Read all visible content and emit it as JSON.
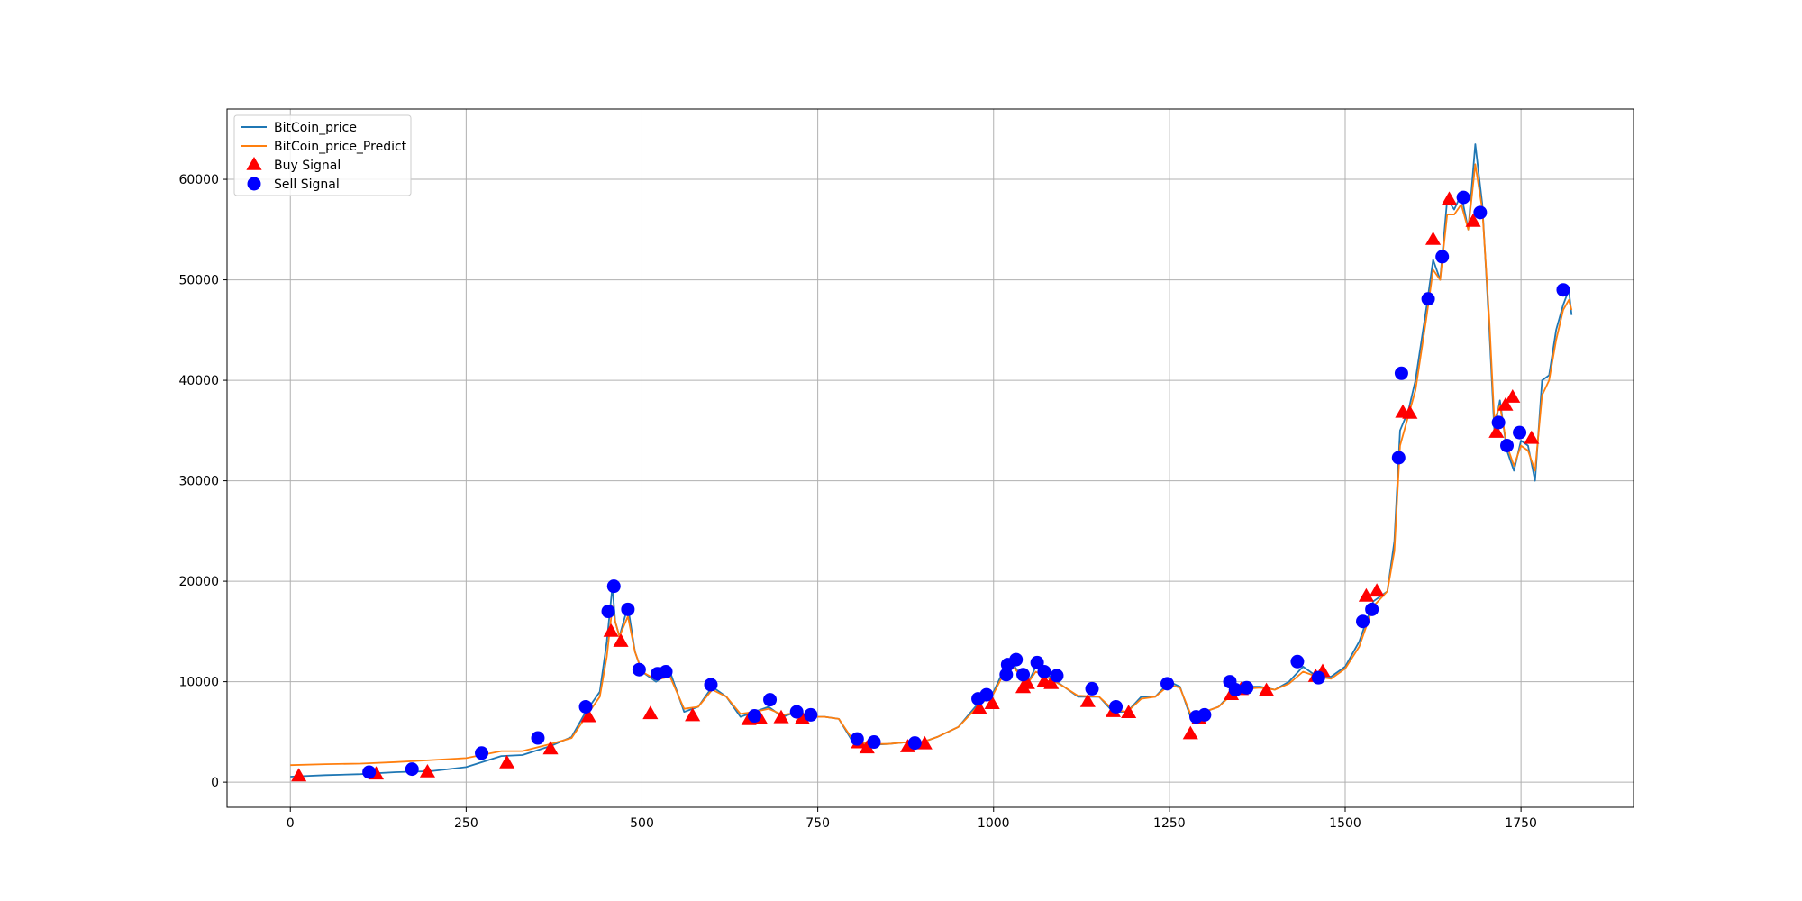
{
  "chart_data": {
    "type": "line",
    "title": "",
    "xlabel": "",
    "ylabel": "",
    "xlim": [
      -90,
      1910
    ],
    "ylim": [
      -2500,
      67000
    ],
    "grid": true,
    "legend_position": "top-left",
    "x_ticks": [
      0,
      250,
      500,
      750,
      1000,
      1250,
      1500,
      1750
    ],
    "y_ticks": [
      0,
      10000,
      20000,
      30000,
      40000,
      50000,
      60000
    ],
    "x_tick_labels": [
      "0",
      "250",
      "500",
      "750",
      "1000",
      "1250",
      "1500",
      "1750"
    ],
    "y_tick_labels": [
      "0",
      "10000",
      "20000",
      "30000",
      "40000",
      "50000",
      "60000"
    ],
    "legend_labels": [
      "BitCoin_price",
      "BitCoin_price_Predict",
      "Buy Signal",
      "Sell Signal"
    ],
    "colors": {
      "price": "#1f77b4",
      "predict": "#ff7f0e",
      "buy": "#ff0000",
      "sell": "#0000ff"
    },
    "series": [
      {
        "name": "BitCoin_price",
        "x": [
          0,
          50,
          100,
          150,
          200,
          250,
          300,
          330,
          370,
          400,
          420,
          440,
          450,
          458,
          462,
          468,
          480,
          490,
          500,
          520,
          540,
          560,
          580,
          600,
          620,
          640,
          660,
          680,
          700,
          720,
          740,
          760,
          780,
          800,
          820,
          850,
          880,
          900,
          920,
          950,
          980,
          1000,
          1010,
          1020,
          1030,
          1040,
          1050,
          1060,
          1080,
          1100,
          1120,
          1150,
          1170,
          1190,
          1210,
          1230,
          1250,
          1265,
          1280,
          1300,
          1320,
          1340,
          1360,
          1380,
          1400,
          1420,
          1440,
          1460,
          1480,
          1500,
          1520,
          1540,
          1560,
          1570,
          1578,
          1590,
          1600,
          1615,
          1625,
          1635,
          1645,
          1655,
          1665,
          1675,
          1685,
          1695,
          1705,
          1712,
          1720,
          1730,
          1740,
          1750,
          1760,
          1770,
          1780,
          1790,
          1800,
          1810,
          1818,
          1822
        ],
        "values": [
          550,
          700,
          800,
          1000,
          1100,
          1500,
          2600,
          2700,
          3600,
          4500,
          7000,
          9000,
          14000,
          19500,
          16000,
          14500,
          17500,
          13000,
          11000,
          10000,
          11000,
          7000,
          7500,
          9500,
          8500,
          6500,
          7000,
          7500,
          6500,
          7000,
          6500,
          6500,
          6300,
          4000,
          3700,
          3800,
          4000,
          4000,
          4500,
          5500,
          8000,
          9000,
          10500,
          12000,
          11500,
          10500,
          10000,
          11500,
          10500,
          9500,
          8500,
          8500,
          7000,
          7000,
          8500,
          8500,
          10000,
          9500,
          6500,
          7000,
          7500,
          9000,
          9500,
          9500,
          9200,
          10000,
          11500,
          10500,
          10500,
          11500,
          14000,
          18000,
          19000,
          24000,
          35000,
          37000,
          40000,
          47000,
          52000,
          50000,
          58000,
          57000,
          58500,
          55000,
          63500,
          57500,
          45000,
          35000,
          38000,
          33000,
          31000,
          34000,
          33500,
          30000,
          40000,
          40500,
          45000,
          47500,
          49000,
          46500
        ]
      },
      {
        "name": "BitCoin_price_Predict",
        "x": [
          0,
          50,
          100,
          150,
          200,
          250,
          300,
          330,
          370,
          400,
          420,
          440,
          450,
          458,
          462,
          468,
          480,
          490,
          500,
          520,
          540,
          560,
          580,
          600,
          620,
          640,
          660,
          680,
          700,
          720,
          740,
          760,
          780,
          800,
          820,
          850,
          880,
          900,
          920,
          950,
          980,
          1000,
          1010,
          1020,
          1030,
          1040,
          1050,
          1060,
          1080,
          1100,
          1120,
          1150,
          1170,
          1190,
          1210,
          1230,
          1250,
          1265,
          1280,
          1300,
          1320,
          1340,
          1360,
          1380,
          1400,
          1420,
          1440,
          1460,
          1480,
          1500,
          1520,
          1540,
          1560,
          1570,
          1578,
          1590,
          1600,
          1615,
          1625,
          1635,
          1645,
          1655,
          1665,
          1675,
          1685,
          1695,
          1705,
          1712,
          1720,
          1730,
          1740,
          1750,
          1760,
          1770,
          1780,
          1790,
          1800,
          1810,
          1818,
          1822
        ],
        "values": [
          1700,
          1800,
          1850,
          2000,
          2200,
          2400,
          3100,
          3100,
          3800,
          4400,
          6500,
          8500,
          12500,
          17500,
          16000,
          14500,
          16500,
          13000,
          11000,
          10200,
          10500,
          7300,
          7500,
          9200,
          8500,
          6800,
          7000,
          7300,
          6700,
          6900,
          6500,
          6500,
          6300,
          4200,
          3800,
          3800,
          4000,
          4000,
          4500,
          5500,
          7700,
          8800,
          10200,
          11500,
          11300,
          10500,
          10000,
          11000,
          10300,
          9500,
          8600,
          8500,
          7200,
          7000,
          8300,
          8500,
          9700,
          9400,
          6800,
          7000,
          7500,
          8800,
          9300,
          9400,
          9200,
          9800,
          11000,
          10500,
          10300,
          11300,
          13500,
          17500,
          19000,
          23000,
          33500,
          36500,
          39000,
          46000,
          51000,
          50000,
          56500,
          56500,
          57500,
          55000,
          61500,
          57000,
          46000,
          36000,
          37500,
          33500,
          31500,
          33500,
          33000,
          31000,
          38500,
          40000,
          44000,
          47000,
          48000,
          47000
        ]
      }
    ],
    "buy_signals": {
      "x": [
        12,
        122,
        195,
        308,
        370,
        424,
        456,
        470,
        512,
        572,
        652,
        668,
        698,
        728,
        808,
        820,
        878,
        902,
        980,
        998,
        1042,
        1048,
        1072,
        1082,
        1134,
        1170,
        1192,
        1280,
        1292,
        1338,
        1352,
        1388,
        1458,
        1468,
        1530,
        1545,
        1582,
        1592,
        1625,
        1648,
        1682,
        1715,
        1728,
        1738,
        1765
      ],
      "y": [
        600,
        800,
        1000,
        1900,
        3300,
        6500,
        15000,
        14000,
        6800,
        6600,
        6200,
        6300,
        6400,
        6300,
        3900,
        3400,
        3500,
        3800,
        7300,
        7800,
        9400,
        9800,
        10000,
        9800,
        8000,
        7000,
        6900,
        4800,
        6300,
        8700,
        9200,
        9100,
        10500,
        11000,
        18500,
        19000,
        36800,
        36700,
        54000,
        58000,
        55800,
        34800,
        37500,
        38300,
        34200
      ]
    },
    "sell_signals": {
      "x": [
        112,
        173,
        272,
        352,
        420,
        452,
        460,
        480,
        496,
        522,
        534,
        598,
        660,
        682,
        720,
        740,
        806,
        830,
        888,
        978,
        990,
        1018,
        1020,
        1032,
        1042,
        1062,
        1072,
        1090,
        1140,
        1174,
        1247,
        1288,
        1300,
        1336,
        1344,
        1360,
        1432,
        1462,
        1525,
        1538,
        1576,
        1580,
        1618,
        1638,
        1668,
        1692,
        1718,
        1730,
        1748,
        1810
      ],
      "y": [
        1000,
        1300,
        2900,
        4400,
        7500,
        17000,
        19500,
        17200,
        11200,
        10800,
        11000,
        9700,
        6600,
        8200,
        7000,
        6700,
        4300,
        4000,
        3900,
        8300,
        8700,
        10700,
        11700,
        12200,
        10700,
        11900,
        11000,
        10600,
        9300,
        7500,
        9800,
        6500,
        6700,
        10000,
        9200,
        9400,
        12000,
        10400,
        16000,
        17200,
        32300,
        40700,
        48100,
        52300,
        58200,
        56700,
        35800,
        33500,
        34800,
        49000
      ]
    }
  }
}
